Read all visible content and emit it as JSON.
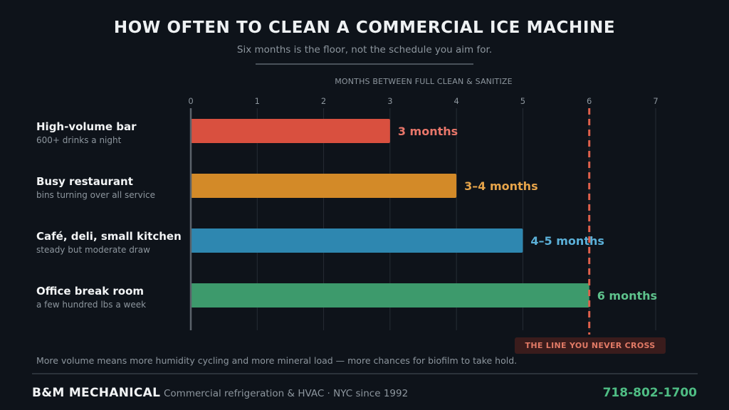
{
  "header": {
    "title": "HOW OFTEN TO CLEAN A COMMERCIAL ICE MACHINE",
    "subtitle": "Six months is the floor, not the schedule you aim for."
  },
  "chart_data": {
    "type": "bar",
    "orientation": "horizontal",
    "xlabel": "MONTHS BETWEEN FULL CLEAN & SANITIZE",
    "xlim": [
      0,
      7
    ],
    "xticks": [
      "0",
      "1",
      "2",
      "3",
      "4",
      "5",
      "6",
      "7"
    ],
    "grid": true,
    "categories": [
      {
        "name": "High-volume bar",
        "note": "600+ drinks a night",
        "value": 3,
        "label": "3 months",
        "color": "#d9503f",
        "label_color": "#e8766a"
      },
      {
        "name": "Busy restaurant",
        "note": "bins turning over all service",
        "value": 4,
        "label": "3–4 months",
        "color": "#d38a28",
        "label_color": "#e6a44a"
      },
      {
        "name": "Café, deli, small kitchen",
        "note": "steady but moderate draw",
        "value": 5,
        "label": "4–5 months",
        "color": "#2e87b0",
        "label_color": "#5bb0d8"
      },
      {
        "name": "Office break room",
        "note": "a few hundred lbs a week",
        "value": 6,
        "label": "6 months",
        "color": "#3d9a6c",
        "label_color": "#5ec28c"
      }
    ],
    "threshold": {
      "value": 6,
      "label": "THE LINE YOU NEVER CROSS",
      "color": "#e0604c"
    }
  },
  "footnote": "More volume means more humidity cycling and more mineral load — more chances for biofilm to take hold.",
  "footer": {
    "brand": "B&M MECHANICAL",
    "tagline": "Commercial refrigeration & HVAC · NYC since 1992",
    "phone": "718-802-1700"
  }
}
